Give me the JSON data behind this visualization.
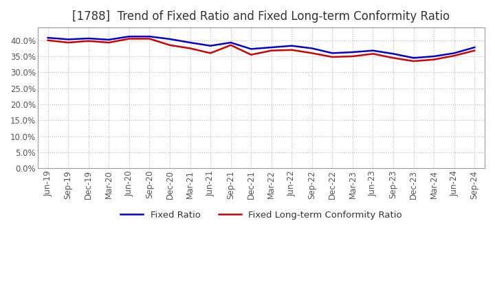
{
  "title": "[1788]  Trend of Fixed Ratio and Fixed Long-term Conformity Ratio",
  "x_labels": [
    "Jun-19",
    "Sep-19",
    "Dec-19",
    "Mar-20",
    "Jun-20",
    "Sep-20",
    "Dec-20",
    "Mar-21",
    "Jun-21",
    "Sep-21",
    "Dec-21",
    "Mar-22",
    "Jun-22",
    "Sep-22",
    "Dec-22",
    "Mar-23",
    "Jun-23",
    "Sep-23",
    "Dec-23",
    "Mar-24",
    "Jun-24",
    "Sep-24"
  ],
  "fixed_ratio": [
    0.408,
    0.403,
    0.406,
    0.402,
    0.412,
    0.412,
    0.404,
    0.393,
    0.383,
    0.393,
    0.373,
    0.378,
    0.383,
    0.375,
    0.36,
    0.363,
    0.368,
    0.358,
    0.345,
    0.35,
    0.36,
    0.378
  ],
  "fixed_lt_ratio": [
    0.4,
    0.393,
    0.398,
    0.393,
    0.405,
    0.405,
    0.385,
    0.375,
    0.36,
    0.385,
    0.355,
    0.368,
    0.37,
    0.36,
    0.348,
    0.35,
    0.358,
    0.345,
    0.335,
    0.34,
    0.352,
    0.368
  ],
  "fixed_ratio_color": "#0000cc",
  "fixed_lt_ratio_color": "#cc0000",
  "ylim": [
    0.0,
    0.44
  ],
  "yticks": [
    0.0,
    0.05,
    0.1,
    0.15,
    0.2,
    0.25,
    0.3,
    0.35,
    0.4
  ],
  "background_color": "#ffffff",
  "grid_color": "#bbbbbb",
  "legend_fixed_ratio": "Fixed Ratio",
  "legend_fixed_lt_ratio": "Fixed Long-term Conformity Ratio",
  "title_fontsize": 12,
  "axis_fontsize": 8.5,
  "legend_fontsize": 9.5,
  "line_width": 1.8
}
